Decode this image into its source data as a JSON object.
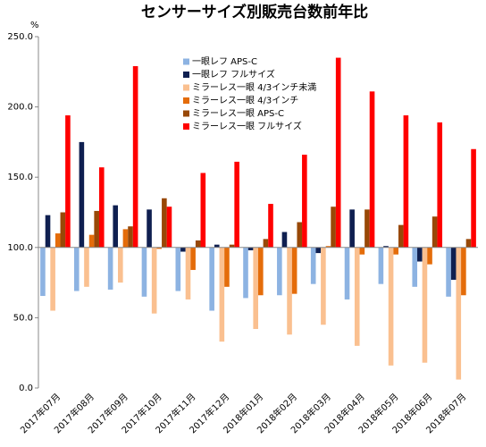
{
  "chart_data": {
    "type": "bar",
    "title": "センサーサイズ別販売台数前年比",
    "y_unit": "%",
    "baseline": 100,
    "categories": [
      "2017年07月",
      "2017年08月",
      "2017年09月",
      "2017年10月",
      "2017年11月",
      "2017年12月",
      "2018年01月",
      "2018年02月",
      "2018年03月",
      "2018年04月",
      "2018年05月",
      "2018年06月",
      "2018年07月"
    ],
    "series": [
      {
        "name": "一眼レフ APS-C",
        "color": "#8db3e2",
        "values": [
          65.5,
          69,
          70,
          65,
          69,
          55,
          64,
          66,
          74,
          63,
          74,
          72,
          65
        ]
      },
      {
        "name": "一眼レフ フルサイズ",
        "color": "#0f1f50",
        "values": [
          123,
          175,
          130,
          127,
          97,
          102,
          98,
          111,
          96,
          127,
          101,
          90,
          77
        ]
      },
      {
        "name": "ミラーレス一眼 4/3インチ未満",
        "color": "#fac090",
        "values": [
          55,
          72,
          75,
          53,
          63,
          33,
          42,
          38,
          45,
          30,
          16,
          18,
          6
        ]
      },
      {
        "name": "ミラーレス一眼 4/3インチ",
        "color": "#e46c0a",
        "values": [
          110,
          109,
          113,
          99,
          84,
          72,
          66,
          67,
          101,
          95,
          95,
          88,
          66
        ]
      },
      {
        "name": "ミラーレス一眼 APS-C",
        "color": "#984807",
        "values": [
          125,
          126,
          115,
          135,
          105,
          102,
          106,
          118,
          129,
          127,
          116,
          122,
          106
        ]
      },
      {
        "name": "ミラーレス一眼 フルサイズ",
        "color": "#ff0000",
        "values": [
          194,
          157,
          229,
          129,
          153,
          161,
          131,
          166,
          235,
          211,
          194,
          189,
          170
        ]
      }
    ],
    "ylim": [
      0,
      250
    ],
    "yticks": [
      {
        "value": 0,
        "label": "0.0"
      },
      {
        "value": 50,
        "label": "50.0"
      },
      {
        "value": 100,
        "label": "100.0"
      },
      {
        "value": 150,
        "label": "150.0"
      },
      {
        "value": 200,
        "label": "200.0"
      },
      {
        "value": 250,
        "label": "250.0"
      }
    ]
  }
}
